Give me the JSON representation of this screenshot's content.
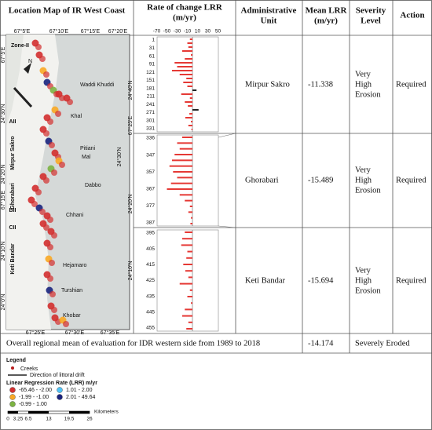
{
  "header": {
    "map": "Location Map of IR West Coast",
    "lrr": [
      "Rate of change LRR",
      "(m/yr)"
    ],
    "unit": [
      "Administrative",
      "Unit"
    ],
    "mean": [
      "Mean LRR",
      "(m/yr)"
    ],
    "severity": [
      "Severity",
      "Level"
    ],
    "action": "Action"
  },
  "map": {
    "top_labels": [
      "67°5'E",
      "67°10'E",
      "67°15'E",
      "67°20'E"
    ],
    "bottom_labels": [
      "67°25'E",
      "67°30'E",
      "67°35'E"
    ],
    "left_labels": [
      "67°5'E",
      "24°30'N",
      "24°20'N",
      "67°15'E",
      "24°10'N",
      "24°0'N"
    ],
    "right_labels": [
      "24°40'N",
      "67°25'E",
      "24°30'N",
      "24°20'N",
      "24°10'N"
    ],
    "places": [
      "Zone-II",
      "Waddi Khuddi",
      "Khal",
      "Pitiani",
      "Mal",
      "Dabbo",
      "Chhani",
      "Hejamaro",
      "Turshian",
      "Khobar"
    ],
    "zones": [
      "AII",
      "Mirpur Sakro",
      "Ghorabari",
      "BII",
      "CII",
      "Keti Bandar"
    ],
    "north": "N"
  },
  "lrr": {
    "ticks": [
      -70,
      -50,
      -30,
      -10,
      10,
      30,
      50
    ],
    "color": "#e53935",
    "sections": [
      {
        "labels": [
          "1",
          "31",
          "61",
          "91",
          "121",
          "151",
          "181",
          "211",
          "241",
          "271",
          "301",
          "331"
        ],
        "values": [
          -5,
          -10,
          -8,
          -20,
          -3,
          -15,
          -35,
          -30,
          -40,
          -25,
          -12,
          -18,
          -10,
          8,
          -22,
          -5,
          -15,
          -9,
          12,
          -6,
          -14,
          -3,
          -8,
          -2
        ]
      },
      {
        "labels": [
          "336",
          "347",
          "357",
          "367",
          "377",
          "387"
        ],
        "values": [
          -20,
          -30,
          -25,
          -35,
          -40,
          -45,
          -38,
          -30,
          -42,
          -50,
          -25,
          -15,
          -5,
          -8,
          -3,
          -4
        ]
      },
      {
        "labels": [
          "395",
          "405",
          "415",
          "425",
          "435",
          "445",
          "455"
        ],
        "values": [
          -15,
          -20,
          -22,
          -10,
          -12,
          -18,
          -14,
          -8,
          -25,
          -5,
          -10,
          -3,
          -15,
          -20,
          -8,
          -12
        ]
      }
    ]
  },
  "table": {
    "rows": [
      {
        "unit": "Mirpur Sakro",
        "mean": "-11.338",
        "severity": [
          "Very",
          "High",
          "Erosion"
        ],
        "action": "Required"
      },
      {
        "unit": "Ghorabari",
        "mean": "-15.489",
        "severity": [
          "Very",
          "High",
          "Erosion"
        ],
        "action": "Required"
      },
      {
        "unit": "Keti Bandar",
        "mean": "-15.694",
        "severity": [
          "Very",
          "High",
          "Erosion"
        ],
        "action": "Required"
      }
    ],
    "overall": {
      "text": "Overall regional mean of evaluation for IDR western side from 1989 to 2018",
      "mean": "-14.174",
      "severity": "Severely Eroded"
    }
  },
  "legend": {
    "title": "Legend",
    "creeks": "Creeks",
    "drift": "Direction of littoral drift",
    "lrr_title": "Linear Regression Rate (LRR) m/yr",
    "classes": [
      {
        "label": "-65.46 - -2.00",
        "color": "#d32f2f"
      },
      {
        "label": "-1.99 - -1.00",
        "color": "#f9a825"
      },
      {
        "label": "-0.99 - 1.00",
        "color": "#7cb342"
      },
      {
        "label": "1.01 - 2.00",
        "color": "#4fc3f7"
      },
      {
        "label": "2.01 - 49.64",
        "color": "#1a237e"
      }
    ],
    "scale": [
      "0",
      "3.25",
      "6.5",
      "13",
      "19.5",
      "26"
    ],
    "scale_unit": "Kilometers"
  }
}
